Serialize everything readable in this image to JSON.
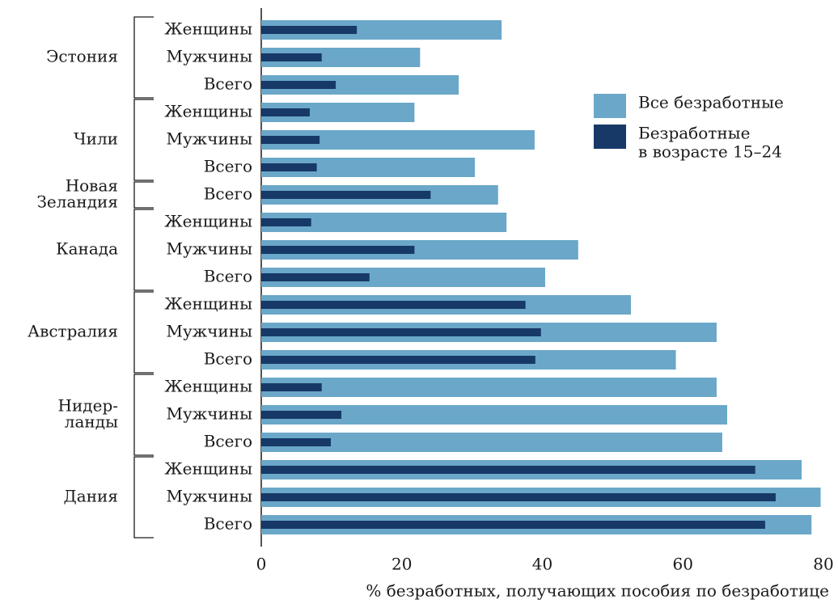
{
  "chart_data": {
    "type": "bar",
    "orientation": "horizontal",
    "xlabel": "% безработных, получающих пособия по безработице",
    "xlim": [
      0,
      80
    ],
    "x_ticks": [
      "0",
      "20",
      "40",
      "60",
      "80"
    ],
    "colors": {
      "all": "#6aa7c8",
      "youth": "#173968"
    },
    "legend": {
      "placement": "right",
      "entries": [
        {
          "key": "all",
          "label_lines": [
            "Все безработные"
          ]
        },
        {
          "key": "youth",
          "label_lines": [
            "Безработные",
            "в возрасте 15–24"
          ]
        }
      ]
    },
    "series": [
      {
        "key": "all",
        "name": "Все безработные"
      },
      {
        "key": "youth",
        "name": "Безработные в возрасте 15–24"
      }
    ],
    "groups": [
      {
        "country_lines": [
          "Эстония"
        ],
        "rows": [
          {
            "label": "Женщины",
            "all": 34.2,
            "youth": 13.6
          },
          {
            "label": "Мужчины",
            "all": 22.6,
            "youth": 8.6
          },
          {
            "label": "Всего",
            "all": 28.1,
            "youth": 10.6
          }
        ]
      },
      {
        "country_lines": [
          "Чили"
        ],
        "rows": [
          {
            "label": "Женщины",
            "all": 21.8,
            "youth": 6.9
          },
          {
            "label": "Мужчины",
            "all": 38.9,
            "youth": 8.3
          },
          {
            "label": "Всего",
            "all": 30.4,
            "youth": 7.9
          }
        ]
      },
      {
        "country_lines": [
          "Новая",
          "Зеландия"
        ],
        "rows": [
          {
            "label": "Всего",
            "all": 33.7,
            "youth": 24.1
          }
        ]
      },
      {
        "country_lines": [
          "Канада"
        ],
        "rows": [
          {
            "label": "Женщины",
            "all": 34.9,
            "youth": 7.1
          },
          {
            "label": "Мужчины",
            "all": 45.1,
            "youth": 21.8
          },
          {
            "label": "Всего",
            "all": 40.4,
            "youth": 15.4
          }
        ]
      },
      {
        "country_lines": [
          "Австралия"
        ],
        "rows": [
          {
            "label": "Женщины",
            "all": 52.6,
            "youth": 37.6
          },
          {
            "label": "Мужчины",
            "all": 64.8,
            "youth": 39.8
          },
          {
            "label": "Всего",
            "all": 59.0,
            "youth": 39.0
          }
        ]
      },
      {
        "country_lines": [
          "Нидер-",
          "ланды"
        ],
        "rows": [
          {
            "label": "Женщины",
            "all": 64.8,
            "youth": 8.6
          },
          {
            "label": "Мужчины",
            "all": 66.3,
            "youth": 11.4
          },
          {
            "label": "Всего",
            "all": 65.6,
            "youth": 9.9
          }
        ]
      },
      {
        "country_lines": [
          "Дания"
        ],
        "rows": [
          {
            "label": "Женщины",
            "all": 76.9,
            "youth": 70.3
          },
          {
            "label": "Мужчины",
            "all": 79.6,
            "youth": 73.2
          },
          {
            "label": "Всего",
            "all": 78.3,
            "youth": 71.7
          }
        ]
      }
    ]
  }
}
